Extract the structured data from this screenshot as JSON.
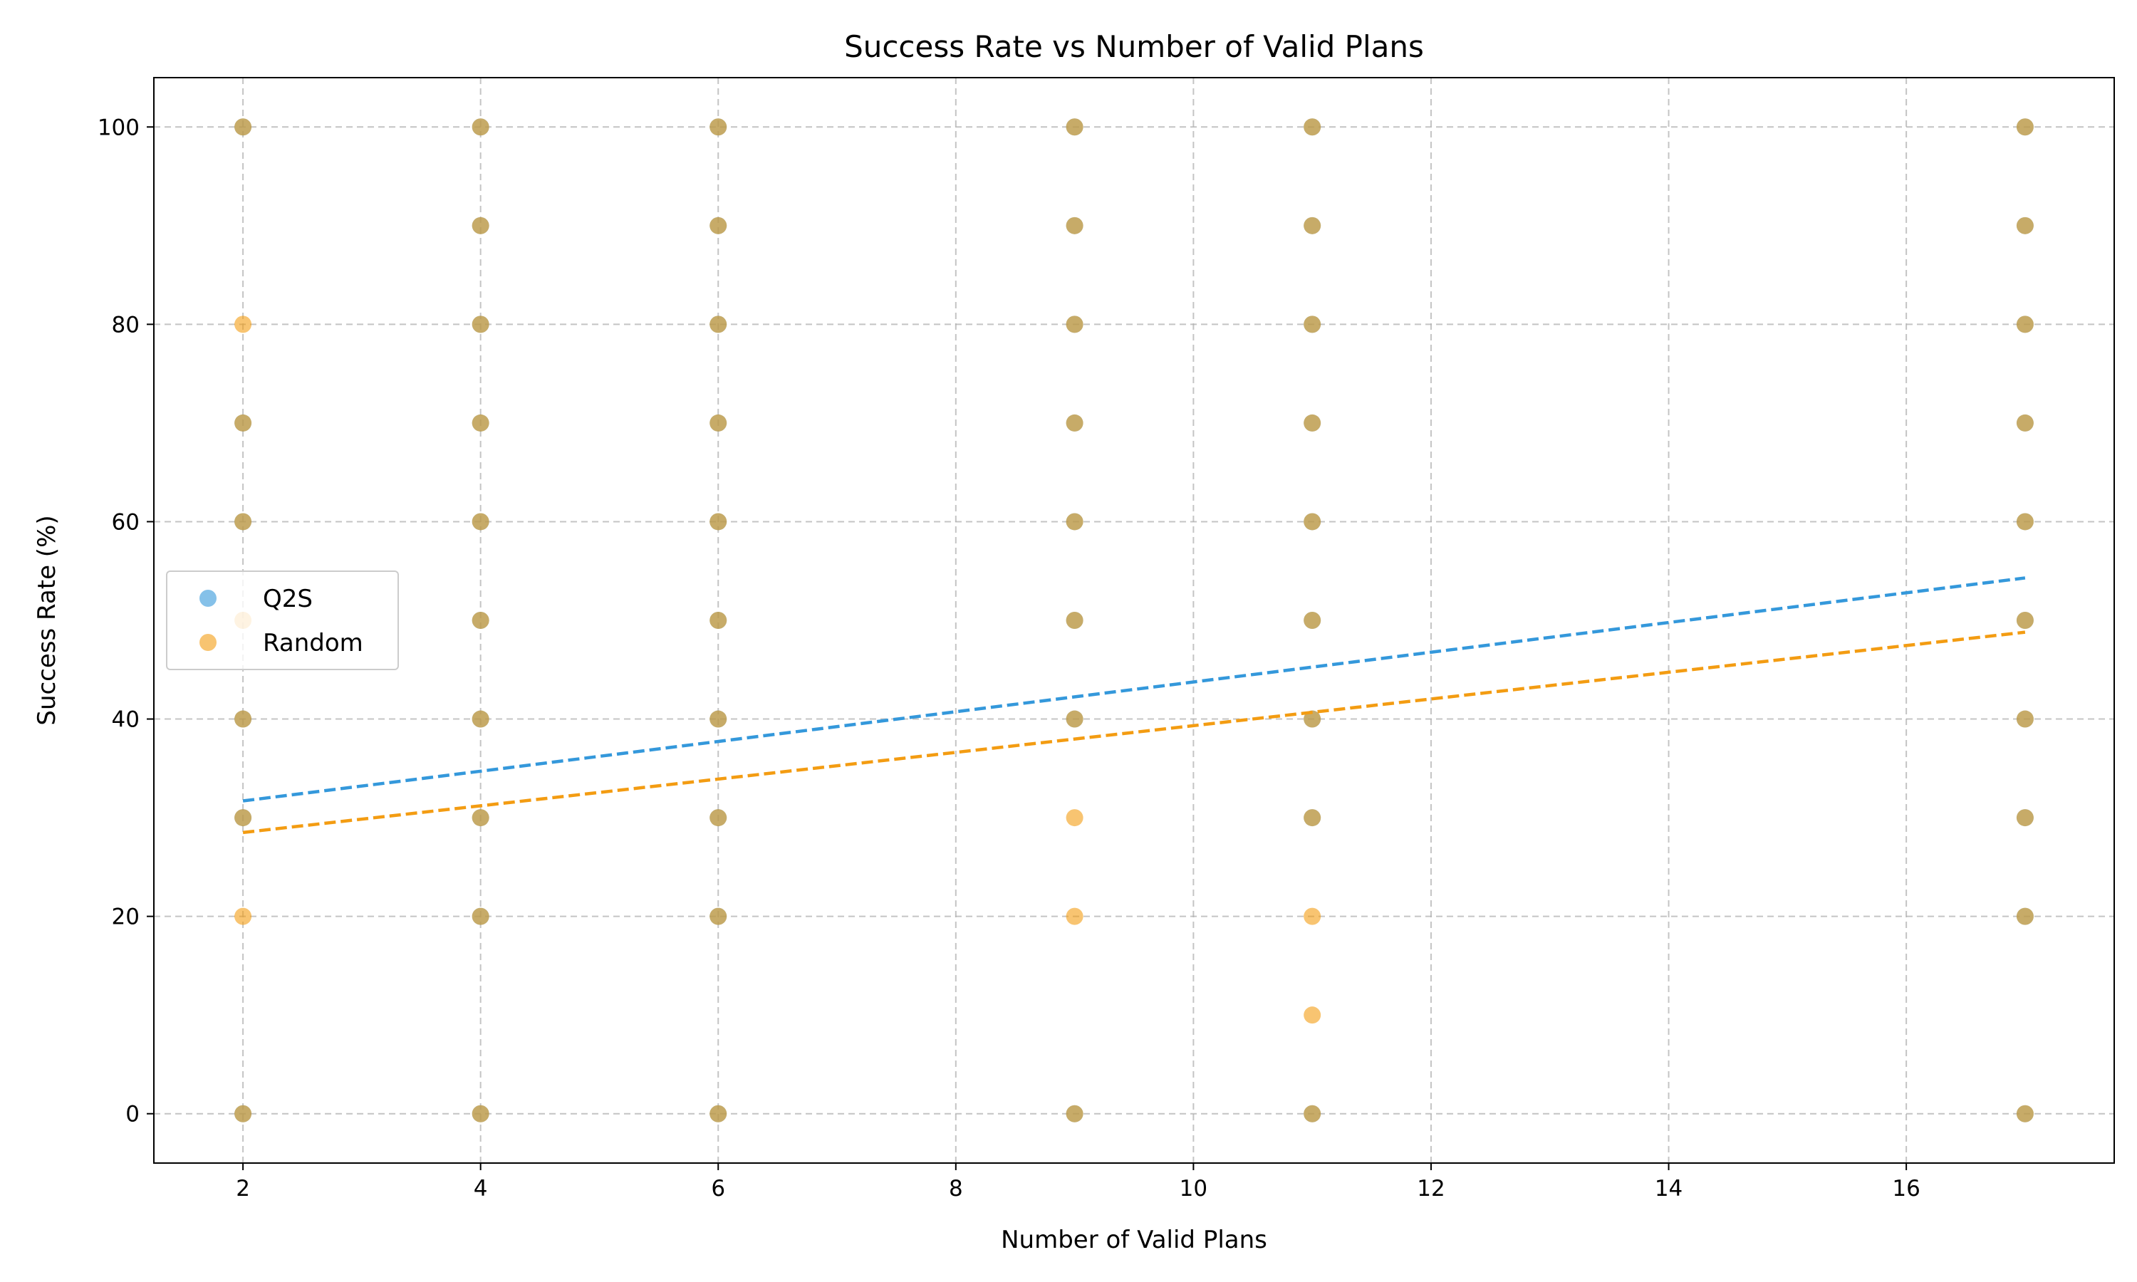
{
  "chart_data": {
    "type": "scatter",
    "title": "Success Rate vs Number of Valid Plans",
    "xlabel": "Number of Valid Plans",
    "ylabel": "Success Rate (%)",
    "xlim": [
      1.25,
      17.75
    ],
    "ylim": [
      -5,
      105
    ],
    "xticks": [
      2,
      4,
      6,
      8,
      10,
      12,
      14,
      16
    ],
    "yticks": [
      0,
      20,
      40,
      60,
      80,
      100
    ],
    "grid": true,
    "legend_position": "center-left",
    "series": [
      {
        "name": "Q2S",
        "color": "#3498db",
        "points": [
          [
            2,
            100
          ],
          [
            2,
            70
          ],
          [
            2,
            60
          ],
          [
            2,
            40
          ],
          [
            2,
            30
          ],
          [
            2,
            0
          ],
          [
            4,
            100
          ],
          [
            4,
            90
          ],
          [
            4,
            80
          ],
          [
            4,
            70
          ],
          [
            4,
            60
          ],
          [
            4,
            50
          ],
          [
            4,
            40
          ],
          [
            4,
            30
          ],
          [
            4,
            20
          ],
          [
            4,
            0
          ],
          [
            6,
            100
          ],
          [
            6,
            90
          ],
          [
            6,
            80
          ],
          [
            6,
            70
          ],
          [
            6,
            60
          ],
          [
            6,
            50
          ],
          [
            6,
            40
          ],
          [
            6,
            30
          ],
          [
            6,
            20
          ],
          [
            6,
            0
          ],
          [
            9,
            100
          ],
          [
            9,
            90
          ],
          [
            9,
            80
          ],
          [
            9,
            70
          ],
          [
            9,
            60
          ],
          [
            9,
            50
          ],
          [
            9,
            40
          ],
          [
            9,
            0
          ],
          [
            11,
            100
          ],
          [
            11,
            90
          ],
          [
            11,
            80
          ],
          [
            11,
            70
          ],
          [
            11,
            60
          ],
          [
            11,
            50
          ],
          [
            11,
            40
          ],
          [
            11,
            30
          ],
          [
            11,
            0
          ],
          [
            17,
            100
          ],
          [
            17,
            90
          ],
          [
            17,
            80
          ],
          [
            17,
            70
          ],
          [
            17,
            60
          ],
          [
            17,
            50
          ],
          [
            17,
            40
          ],
          [
            17,
            30
          ],
          [
            17,
            20
          ],
          [
            17,
            0
          ]
        ],
        "trendline": [
          [
            2,
            31.7
          ],
          [
            17,
            54.3
          ]
        ]
      },
      {
        "name": "Random",
        "color": "#f39c12",
        "points": [
          [
            2,
            100
          ],
          [
            2,
            80
          ],
          [
            2,
            70
          ],
          [
            2,
            60
          ],
          [
            2,
            50
          ],
          [
            2,
            40
          ],
          [
            2,
            30
          ],
          [
            2,
            20
          ],
          [
            2,
            0
          ],
          [
            4,
            100
          ],
          [
            4,
            90
          ],
          [
            4,
            80
          ],
          [
            4,
            70
          ],
          [
            4,
            60
          ],
          [
            4,
            50
          ],
          [
            4,
            40
          ],
          [
            4,
            30
          ],
          [
            4,
            20
          ],
          [
            4,
            0
          ],
          [
            6,
            100
          ],
          [
            6,
            90
          ],
          [
            6,
            80
          ],
          [
            6,
            70
          ],
          [
            6,
            60
          ],
          [
            6,
            50
          ],
          [
            6,
            40
          ],
          [
            6,
            30
          ],
          [
            6,
            20
          ],
          [
            6,
            0
          ],
          [
            9,
            100
          ],
          [
            9,
            90
          ],
          [
            9,
            80
          ],
          [
            9,
            70
          ],
          [
            9,
            60
          ],
          [
            9,
            50
          ],
          [
            9,
            40
          ],
          [
            9,
            30
          ],
          [
            9,
            20
          ],
          [
            9,
            0
          ],
          [
            11,
            100
          ],
          [
            11,
            90
          ],
          [
            11,
            80
          ],
          [
            11,
            70
          ],
          [
            11,
            60
          ],
          [
            11,
            50
          ],
          [
            11,
            40
          ],
          [
            11,
            30
          ],
          [
            11,
            20
          ],
          [
            11,
            10
          ],
          [
            11,
            0
          ],
          [
            17,
            100
          ],
          [
            17,
            90
          ],
          [
            17,
            80
          ],
          [
            17,
            70
          ],
          [
            17,
            60
          ],
          [
            17,
            50
          ],
          [
            17,
            40
          ],
          [
            17,
            30
          ],
          [
            17,
            20
          ],
          [
            17,
            0
          ]
        ],
        "trendline": [
          [
            2,
            28.5
          ],
          [
            17,
            48.8
          ]
        ]
      }
    ]
  }
}
